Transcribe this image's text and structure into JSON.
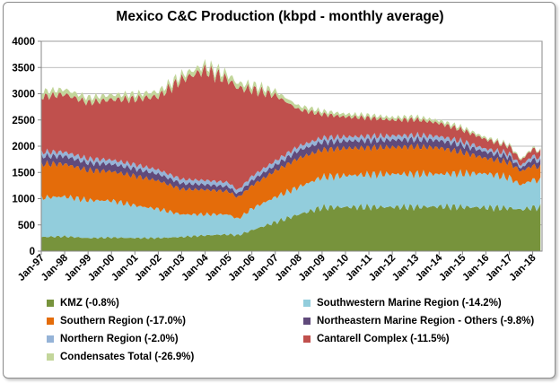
{
  "chart_data": {
    "type": "area",
    "stacked": true,
    "title": "Mexico C&C Production (kbpd - monthly average)",
    "ylim": [
      0,
      4000
    ],
    "yticks": [
      "0",
      "500",
      "1000",
      "1500",
      "2000",
      "2500",
      "3000",
      "3500",
      "4000"
    ],
    "xticks": [
      "Jan-97",
      "Jan-98",
      "Jan-99",
      "Jan-00",
      "Jan-01",
      "Jan-02",
      "Jan-03",
      "Jan-04",
      "Jan-05",
      "Jan-06",
      "Jan-07",
      "Jan-08",
      "Jan-09",
      "Jan-10",
      "Jan-11",
      "Jan-12",
      "Jan-13",
      "Jan-14",
      "Jan-15",
      "Jan-16",
      "Jan-17",
      "Jan-18"
    ],
    "x_start": "Jan-97",
    "x_end": "May-18",
    "grid": "horizontal",
    "legend_position": "bottom",
    "x": [
      1997.0,
      1998.0,
      1999.0,
      2000.0,
      2001.0,
      2002.0,
      2003.0,
      2004.0,
      2005.0,
      2005.4,
      2006.0,
      2007.0,
      2008.0,
      2009.0,
      2010.0,
      2011.0,
      2012.0,
      2013.0,
      2014.0,
      2015.0,
      2016.0,
      2017.0,
      2017.5,
      2018.0,
      2018.4
    ],
    "series": [
      {
        "name": "KMZ (-0.8%)",
        "color": "#77933c",
        "values": [
          270,
          280,
          250,
          260,
          250,
          250,
          270,
          300,
          320,
          300,
          400,
          550,
          700,
          830,
          840,
          840,
          840,
          840,
          850,
          840,
          830,
          820,
          790,
          830,
          830
        ]
      },
      {
        "name": "Southwestern Marine Region (-14.2%)",
        "color": "#92cddc",
        "values": [
          750,
          760,
          720,
          700,
          620,
          550,
          430,
          400,
          380,
          310,
          410,
          480,
          520,
          580,
          600,
          620,
          630,
          630,
          620,
          640,
          650,
          580,
          470,
          530,
          500
        ]
      },
      {
        "name": "Southern Region (-17.0%)",
        "color": "#e46c0a",
        "values": [
          640,
          620,
          570,
          560,
          560,
          540,
          480,
          470,
          440,
          410,
          440,
          500,
          550,
          520,
          520,
          510,
          510,
          520,
          500,
          400,
          290,
          290,
          260,
          270,
          250
        ]
      },
      {
        "name": "Northeastern Marine Region - Others (-9.8%)",
        "color": "#604a7b",
        "values": [
          150,
          150,
          140,
          140,
          140,
          130,
          110,
          100,
          90,
          70,
          100,
          110,
          150,
          150,
          140,
          140,
          140,
          140,
          140,
          140,
          120,
          110,
          60,
          120,
          110
        ]
      },
      {
        "name": "Northern Region (-2.0%)",
        "color": "#95b3d7",
        "values": [
          80,
          80,
          80,
          80,
          80,
          80,
          80,
          80,
          80,
          70,
          80,
          80,
          80,
          80,
          80,
          80,
          80,
          80,
          80,
          70,
          60,
          60,
          50,
          70,
          60
        ]
      },
      {
        "name": "Cantarell Complex (-11.5%)",
        "color": "#c0504d",
        "values": [
          1050,
          1100,
          1070,
          1150,
          1250,
          1400,
          1900,
          2100,
          1950,
          1950,
          1650,
          1250,
          700,
          450,
          380,
          350,
          300,
          300,
          250,
          220,
          180,
          140,
          100,
          130,
          120
        ]
      },
      {
        "name": "Condensates Total (-26.9%)",
        "color": "#c3d69b",
        "values": [
          100,
          95,
          95,
          90,
          90,
          90,
          90,
          95,
          100,
          90,
          90,
          80,
          70,
          60,
          55,
          50,
          50,
          50,
          50,
          45,
          35,
          30,
          25,
          25,
          20
        ]
      }
    ]
  }
}
